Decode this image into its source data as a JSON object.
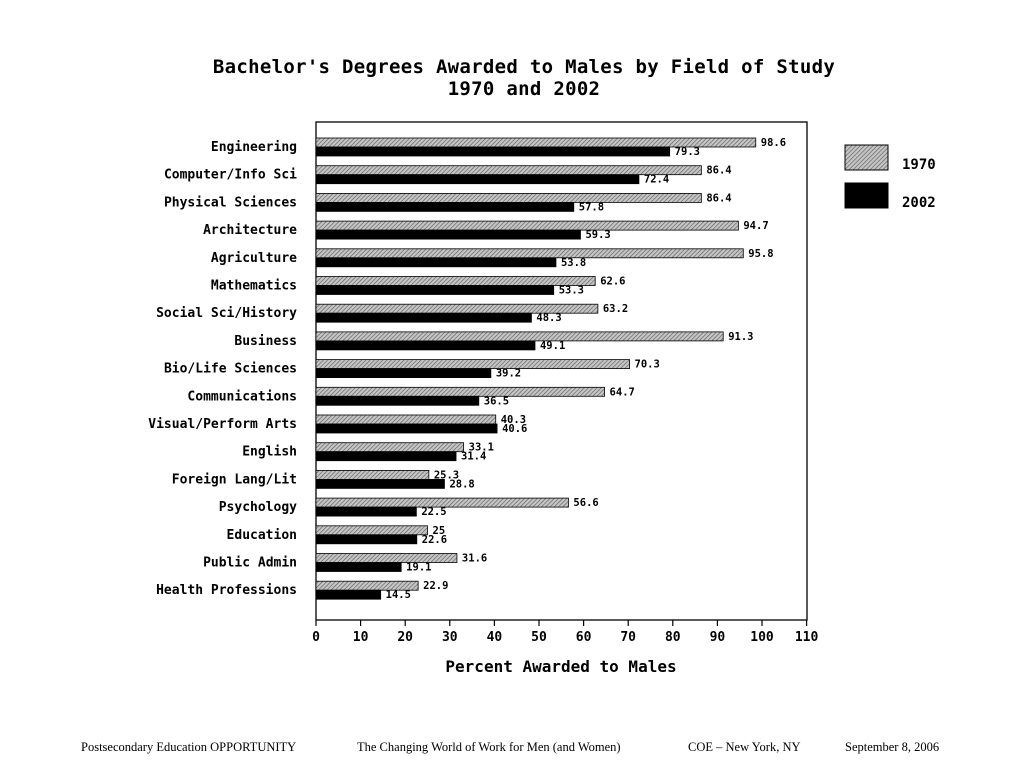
{
  "chart_data": {
    "type": "bar",
    "orientation": "horizontal",
    "title": [
      "Bachelor's Degrees Awarded to Males by Field of Study",
      "1970 and 2002"
    ],
    "xlabel": "Percent Awarded to Males",
    "ylabel": "",
    "xlim": [
      0,
      110
    ],
    "xticks": [
      0,
      10,
      20,
      30,
      40,
      50,
      60,
      70,
      80,
      90,
      100,
      110
    ],
    "grid": false,
    "legend_position": "right",
    "categories": [
      "Engineering",
      "Computer/Info Sci",
      "Physical Sciences",
      "Architecture",
      "Agriculture",
      "Mathematics",
      "Social Sci/History",
      "Business",
      "Bio/Life Sciences",
      "Communications",
      "Visual/Perform Arts",
      "English",
      "Foreign Lang/Lit",
      "Psychology",
      "Education",
      "Public Admin",
      "Health Professions"
    ],
    "series": [
      {
        "name": "1970",
        "fill": "hatched-gray",
        "color": "#a8a8a8",
        "values": [
          98.6,
          86.4,
          86.4,
          94.7,
          95.8,
          62.6,
          63.2,
          91.3,
          70.3,
          64.7,
          40.3,
          33.1,
          25.3,
          56.6,
          25,
          31.6,
          22.9
        ],
        "labels": [
          "98.6",
          "86.4",
          "86.4",
          "94.7",
          "95.8",
          "62.6",
          "63.2",
          "91.3",
          "70.3",
          "64.7",
          "40.3",
          "33.1",
          "25.3",
          "56.6",
          "25",
          "31.6",
          "22.9"
        ]
      },
      {
        "name": "2002",
        "fill": "solid-black",
        "color": "#000000",
        "values": [
          79.3,
          72.4,
          57.8,
          59.3,
          53.8,
          53.3,
          48.3,
          49.1,
          39.2,
          36.5,
          40.6,
          31.4,
          28.8,
          22.5,
          22.6,
          19.1,
          14.5
        ],
        "labels": [
          "79.3",
          "72.4",
          "57.8",
          "59.3",
          "53.8",
          "53.3",
          "48.3",
          "49.1",
          "39.2",
          "36.5",
          "40.6",
          "31.4",
          "28.8",
          "22.5",
          "22.6",
          "19.1",
          "14.5"
        ]
      }
    ]
  },
  "footer": {
    "left": "Postsecondary Education OPPORTUNITY",
    "center": "The Changing World of Work for Men (and Women)",
    "location": "COE – New York, NY",
    "date": "September 8, 2006"
  }
}
